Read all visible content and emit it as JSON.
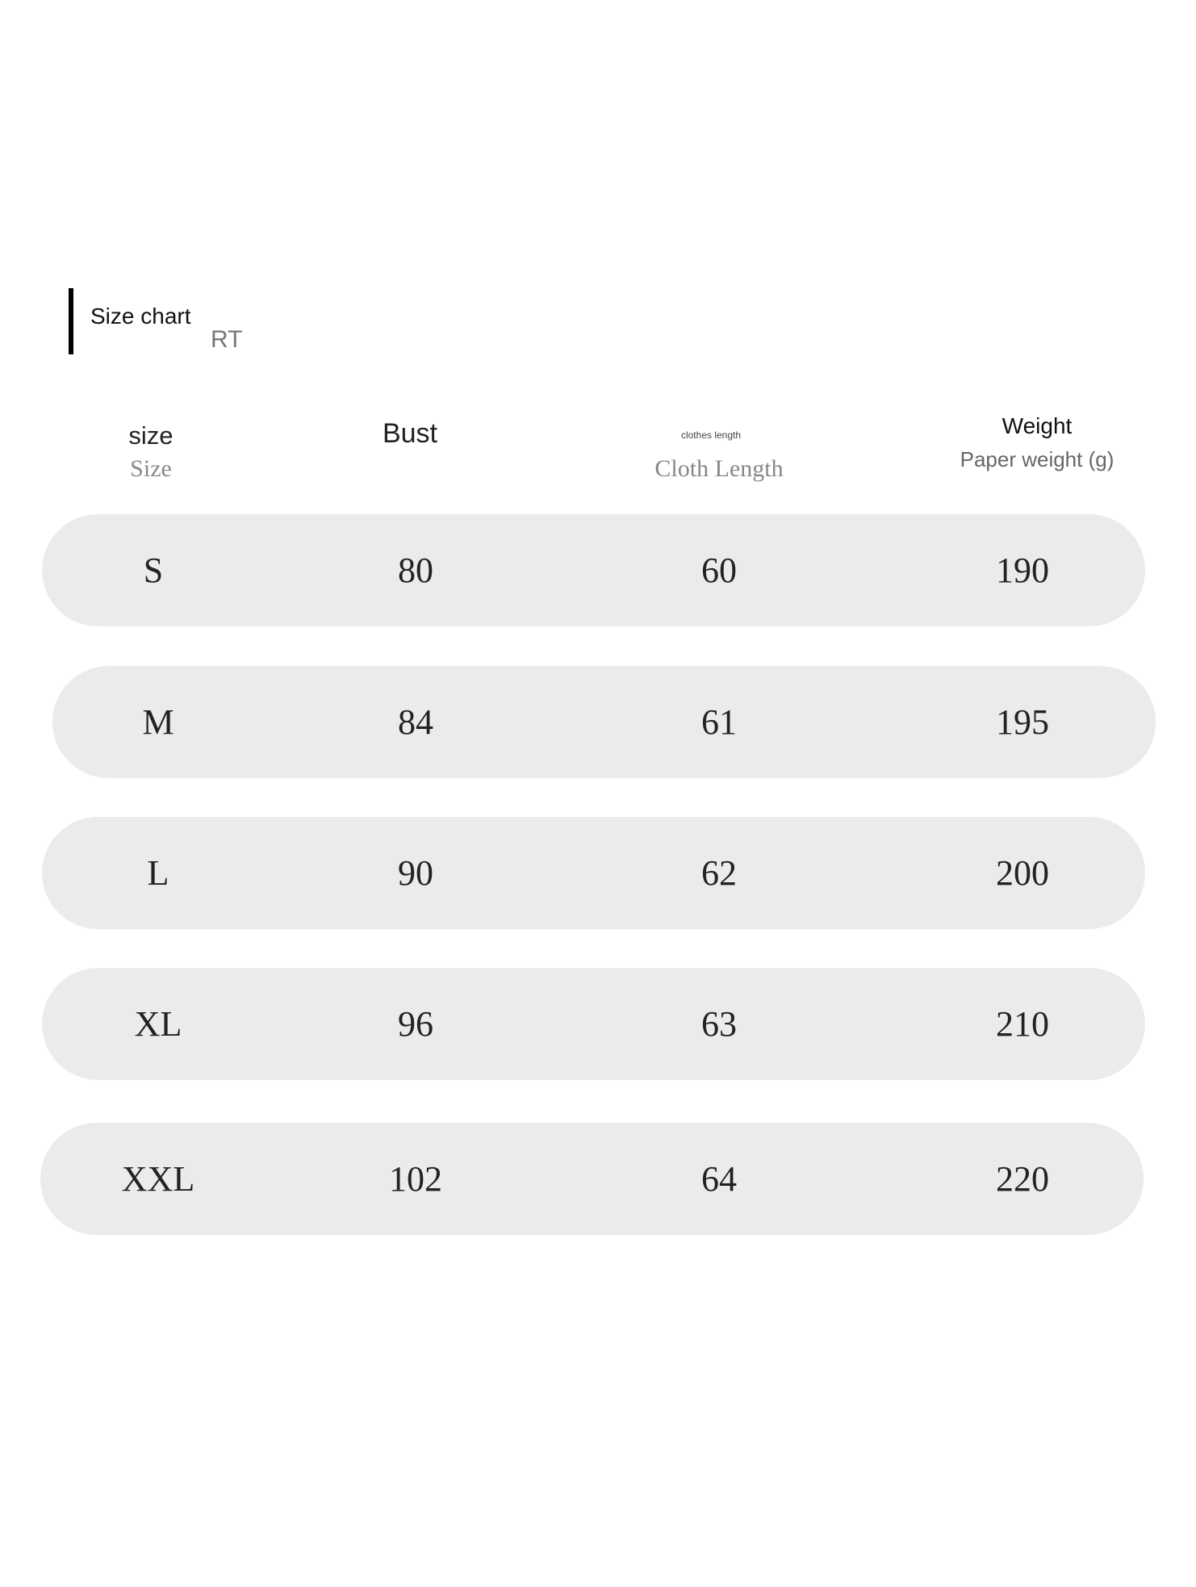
{
  "header": {
    "title": "Size chart",
    "subtitle_fragment": "RT"
  },
  "columns": [
    {
      "primary": "size",
      "secondary": "Size"
    },
    {
      "primary": "Bust",
      "secondary": ""
    },
    {
      "primary": "clothes length",
      "secondary": "Cloth Length"
    },
    {
      "primary": "Weight",
      "secondary": "Paper weight (g)"
    }
  ],
  "rows": [
    [
      "S",
      "80",
      "60",
      "190"
    ],
    [
      "M",
      "84",
      "61",
      "195"
    ],
    [
      "L",
      "90",
      "62",
      "200"
    ],
    [
      "XL",
      "96",
      "63",
      "210"
    ],
    [
      "XXL",
      "102",
      "64",
      "220"
    ]
  ],
  "colors": {
    "row_fill": "#ebebeb",
    "accent_bar": "#000000"
  }
}
